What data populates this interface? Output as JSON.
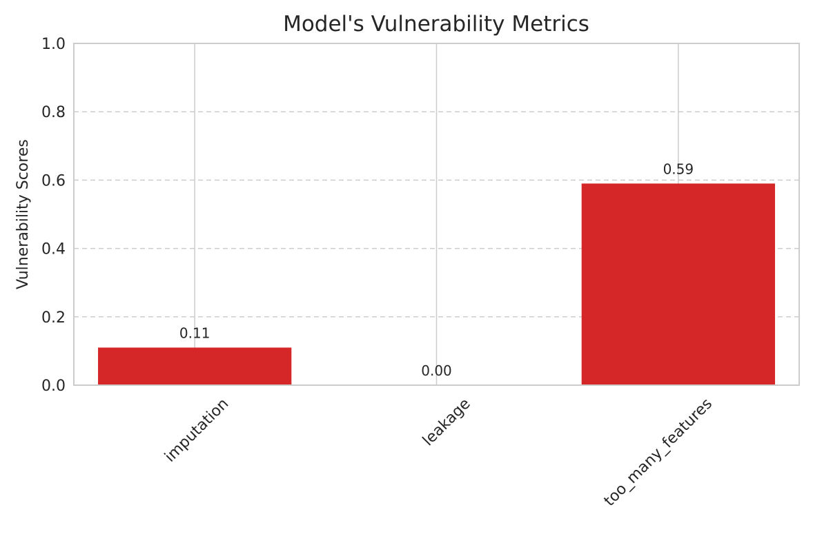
{
  "chart_data": {
    "type": "bar",
    "title": "Model's Vulnerability Metrics",
    "xlabel": "",
    "ylabel": "Vulnerability Scores",
    "categories": [
      "imputation",
      "leakage",
      "too_many_features"
    ],
    "values": [
      0.11,
      0.0,
      0.59
    ],
    "value_labels": [
      "0.11",
      "0.00",
      "0.59"
    ],
    "ylim": [
      0,
      1.0
    ],
    "yticks": [
      0.0,
      0.2,
      0.4,
      0.6,
      0.8,
      1.0
    ],
    "ytick_labels": [
      "0.0",
      "0.2",
      "0.4",
      "0.6",
      "0.8",
      "1.0"
    ],
    "grid": true,
    "bar_color": "#d62728",
    "grid_color": "#cccccc",
    "spine_color": "#cccccc",
    "xtick_rotation_deg": 45
  }
}
